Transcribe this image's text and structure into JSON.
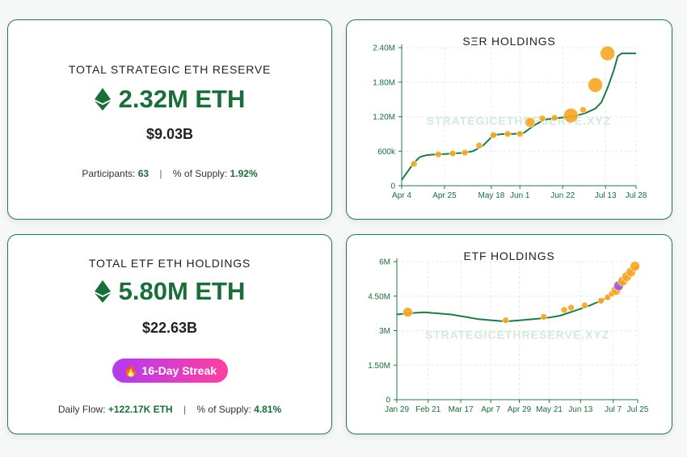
{
  "ser_card": {
    "title": "TOTAL STRATEGIC ETH RESERVE",
    "amount": "2.32M ETH",
    "usd": "$9.03B",
    "participants_label": "Participants:",
    "participants_value": "63",
    "supply_label": "% of Supply:",
    "supply_value": "1.92%"
  },
  "etf_card": {
    "title": "TOTAL ETF ETH HOLDINGS",
    "amount": "5.80M ETH",
    "usd": "$22.63B",
    "streak": "16-Day Streak",
    "daily_flow_label": "Daily Flow:",
    "daily_flow_value": "+122.17K ETH",
    "supply_label": "% of Supply:",
    "supply_value": "4.81%"
  },
  "colors": {
    "accent_green": "#1a6e3a",
    "line_green": "#1f7a45",
    "marker_orange": "#f5a623",
    "marker_purple": "#9b59d6"
  },
  "chart_data": [
    {
      "type": "line",
      "title": "SΞR HOLDINGS",
      "watermark": "STRATEGICETHRESERVE.XYZ",
      "xlabel": "",
      "ylabel": "",
      "ylim": [
        0,
        2400000
      ],
      "yticks": [
        0,
        600000,
        1200000,
        1800000,
        2400000
      ],
      "ytick_labels": [
        "0",
        "600k",
        "1.20M",
        "1.80M",
        "2.40M"
      ],
      "xlim": [
        0,
        115
      ],
      "xticks": [
        0,
        21,
        44,
        58,
        79,
        100,
        115
      ],
      "xtick_labels": [
        "Apr 4",
        "Apr 25",
        "May 18",
        "Jun 1",
        "Jun 22",
        "Jul 13",
        "Jul 28"
      ],
      "grid": true,
      "series": [
        {
          "x": [
            0,
            3,
            6,
            9,
            12,
            15,
            18,
            21,
            25,
            30,
            35,
            40,
            45,
            50,
            55,
            60,
            65,
            70,
            75,
            80,
            85,
            90,
            95,
            98,
            101,
            104,
            106,
            108,
            110,
            112,
            115
          ],
          "values": [
            100000,
            250000,
            400000,
            500000,
            530000,
            540000,
            545000,
            550000,
            560000,
            570000,
            600000,
            700000,
            880000,
            900000,
            900000,
            920000,
            1050000,
            1150000,
            1170000,
            1190000,
            1210000,
            1260000,
            1340000,
            1450000,
            1700000,
            2000000,
            2250000,
            2300000,
            2300000,
            2300000,
            2300000
          ]
        }
      ],
      "markers": [
        {
          "x": 6,
          "y": 380000,
          "size": "small"
        },
        {
          "x": 18,
          "y": 545000,
          "size": "small"
        },
        {
          "x": 25,
          "y": 560000,
          "size": "small"
        },
        {
          "x": 31,
          "y": 575000,
          "size": "small"
        },
        {
          "x": 38,
          "y": 700000,
          "size": "small"
        },
        {
          "x": 45,
          "y": 880000,
          "size": "small"
        },
        {
          "x": 52,
          "y": 900000,
          "size": "small"
        },
        {
          "x": 58,
          "y": 900000,
          "size": "small"
        },
        {
          "x": 63,
          "y": 1100000,
          "size": "medium"
        },
        {
          "x": 69,
          "y": 1170000,
          "size": "small"
        },
        {
          "x": 75,
          "y": 1180000,
          "size": "small"
        },
        {
          "x": 83,
          "y": 1220000,
          "size": "large"
        },
        {
          "x": 89,
          "y": 1320000,
          "size": "small"
        },
        {
          "x": 95,
          "y": 1750000,
          "size": "large"
        },
        {
          "x": 101,
          "y": 2300000,
          "size": "large"
        }
      ]
    },
    {
      "type": "line",
      "title": "ETF HOLDINGS",
      "watermark": "STRATEGICETHRESERVE.XYZ",
      "xlabel": "",
      "ylabel": "",
      "ylim": [
        0,
        6000000
      ],
      "yticks": [
        0,
        1500000,
        3000000,
        4500000,
        6000000
      ],
      "ytick_labels": [
        "0",
        "1.50M",
        "3M",
        "4.50M",
        "6M"
      ],
      "xlim": [
        0,
        177
      ],
      "xticks": [
        0,
        23,
        47,
        69,
        90,
        112,
        135,
        159,
        177
      ],
      "xtick_labels": [
        "Jan 29",
        "Feb 21",
        "Mar 17",
        "Apr 7",
        "Apr 29",
        "May 21",
        "Jun 13",
        "Jul 7",
        "Jul 25"
      ],
      "grid": true,
      "series": [
        {
          "x": [
            0,
            8,
            20,
            30,
            40,
            50,
            60,
            70,
            80,
            90,
            100,
            110,
            120,
            130,
            140,
            150,
            155,
            160,
            163,
            166,
            169,
            172,
            175,
            177
          ],
          "values": [
            3700000,
            3750000,
            3800000,
            3750000,
            3700000,
            3600000,
            3500000,
            3450000,
            3400000,
            3450000,
            3500000,
            3550000,
            3650000,
            3850000,
            4050000,
            4300000,
            4450000,
            4700000,
            4900000,
            5100000,
            5350000,
            5550000,
            5720000,
            5800000
          ]
        }
      ],
      "markers": [
        {
          "x": 8,
          "y": 3800000,
          "size": "medium",
          "color": "orange"
        },
        {
          "x": 80,
          "y": 3450000,
          "size": "small",
          "color": "orange"
        },
        {
          "x": 108,
          "y": 3600000,
          "size": "small",
          "color": "orange"
        },
        {
          "x": 123,
          "y": 3900000,
          "size": "small",
          "color": "orange"
        },
        {
          "x": 128,
          "y": 4000000,
          "size": "small",
          "color": "orange"
        },
        {
          "x": 138,
          "y": 4100000,
          "size": "small",
          "color": "orange"
        },
        {
          "x": 150,
          "y": 4300000,
          "size": "small",
          "color": "orange"
        },
        {
          "x": 155,
          "y": 4450000,
          "size": "small",
          "color": "orange"
        },
        {
          "x": 158,
          "y": 4600000,
          "size": "small",
          "color": "orange"
        },
        {
          "x": 161,
          "y": 4750000,
          "size": "medium",
          "color": "orange"
        },
        {
          "x": 163,
          "y": 4950000,
          "size": "medium",
          "color": "purple"
        },
        {
          "x": 166,
          "y": 5150000,
          "size": "medium",
          "color": "orange"
        },
        {
          "x": 169,
          "y": 5350000,
          "size": "medium",
          "color": "orange"
        },
        {
          "x": 172,
          "y": 5550000,
          "size": "medium",
          "color": "orange"
        },
        {
          "x": 175,
          "y": 5800000,
          "size": "medium",
          "color": "orange"
        }
      ]
    }
  ]
}
